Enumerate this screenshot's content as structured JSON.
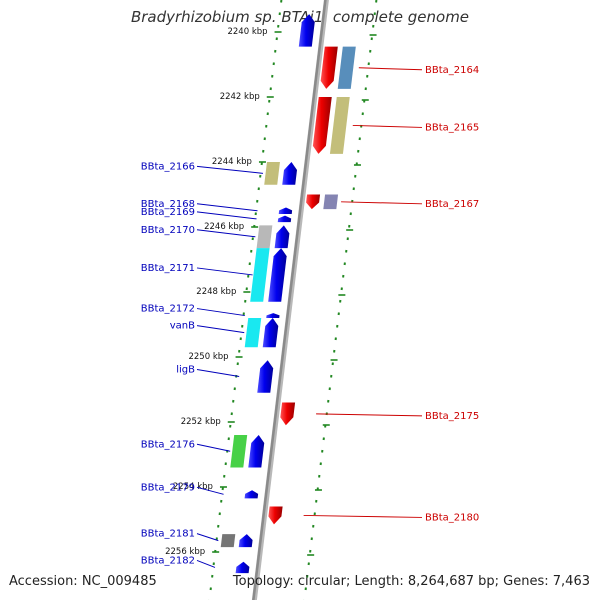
{
  "title": "Bradyrhizobium sp. BTAi1, complete genome",
  "footer": {
    "accession": "Accession: NC_009485",
    "summary": "Topology: circular; Length: 8,264,687 bp; Genes: 7,463"
  },
  "colors": {
    "backbone": "#8a8a8a",
    "forward": "#0000ee",
    "reverse": "#ee0000",
    "ruler": "#228822",
    "left_label": "#0000bb",
    "right_label": "#cc0000",
    "tick_label": "#111111"
  },
  "ticks": [
    {
      "kbp": 2240,
      "label": "2240 kbp"
    },
    {
      "kbp": 2242,
      "label": "2242 kbp"
    },
    {
      "kbp": 2244,
      "label": "2244 kbp"
    },
    {
      "kbp": 2246,
      "label": "2246 kbp"
    },
    {
      "kbp": 2248,
      "label": "2248 kbp"
    },
    {
      "kbp": 2250,
      "label": "2250 kbp"
    },
    {
      "kbp": 2252,
      "label": "2252 kbp"
    },
    {
      "kbp": 2254,
      "label": "2254 kbp"
    },
    {
      "kbp": 2256,
      "label": "2256 kbp"
    }
  ],
  "genes": [
    {
      "name": "",
      "strand": "+",
      "start": 2239.45,
      "end": 2240.45
    },
    {
      "name": "BBta_2164",
      "strand": "-",
      "start": 2240.45,
      "end": 2241.75,
      "color": "#ee1111",
      "cog_color": "#4682b4"
    },
    {
      "name": "BBta_2165",
      "strand": "-",
      "start": 2242.0,
      "end": 2243.75,
      "color": "#ee1111",
      "cog_color": "#bdb76b"
    },
    {
      "name": "BBta_2166",
      "strand": "+",
      "start": 2244.0,
      "end": 2244.7,
      "cog_color": "#bdb76b"
    },
    {
      "name": "BBta_2167",
      "strand": "-",
      "start": 2245.0,
      "end": 2245.45,
      "color": "#ee1111",
      "cog_color": "#7777aa"
    },
    {
      "name": "BBta_2168",
      "strand": "+",
      "start": 2245.4,
      "end": 2245.6
    },
    {
      "name": "BBta_2169",
      "strand": "+",
      "start": 2245.65,
      "end": 2245.85
    },
    {
      "name": "BBta_2170",
      "strand": "+",
      "start": 2245.95,
      "end": 2246.65,
      "cog_color": "#b0b0b0"
    },
    {
      "name": "BBta_2171",
      "strand": "+",
      "start": 2246.65,
      "end": 2248.3,
      "cog_color": "#00e5ee"
    },
    {
      "name": "BBta_2172",
      "strand": "+",
      "start": 2248.65,
      "end": 2248.8
    },
    {
      "name": "vanB",
      "strand": "+",
      "start": 2248.8,
      "end": 2249.7,
      "cog_color": "#00e5ee"
    },
    {
      "name": "ligB",
      "strand": "+",
      "start": 2250.1,
      "end": 2251.1
    },
    {
      "name": "BBta_2175",
      "strand": "-",
      "start": 2251.4,
      "end": 2252.1,
      "color": "#ee1111"
    },
    {
      "name": "BBta_2176",
      "strand": "+",
      "start": 2252.4,
      "end": 2253.4,
      "cog_color": "#33cc33"
    },
    {
      "name": "BBta_2179",
      "strand": "+",
      "start": 2254.1,
      "end": 2254.35
    },
    {
      "name": "BBta_2180",
      "strand": "-",
      "start": 2254.6,
      "end": 2255.15,
      "color": "#ee1111"
    },
    {
      "name": "BBta_2181",
      "strand": "+",
      "start": 2255.45,
      "end": 2255.85,
      "cog_color": "#666666"
    },
    {
      "name": "BBta_2182",
      "strand": "+",
      "start": 2256.3,
      "end": 2256.65
    }
  ]
}
